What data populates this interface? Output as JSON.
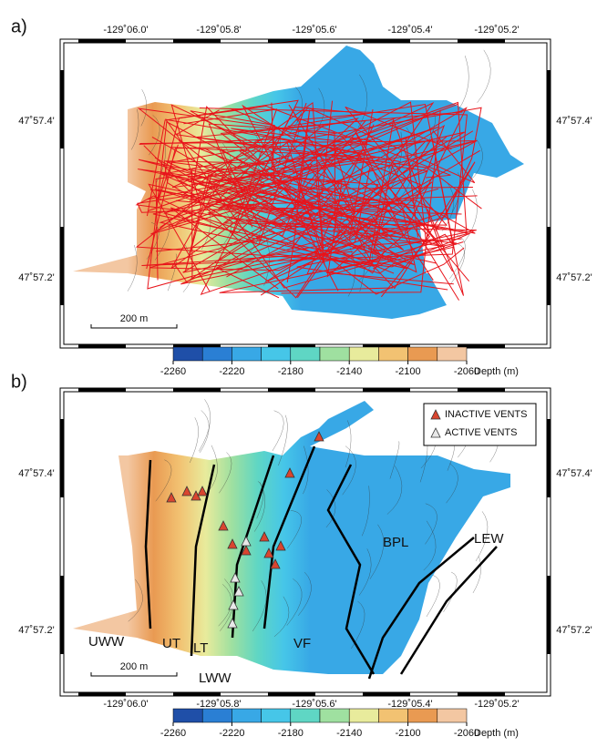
{
  "panels": [
    {
      "label": "a)",
      "x_ticks": [
        "-129˚06.0'",
        "-129˚05.8'",
        "-129˚05.6'",
        "-129˚05.4'",
        "-129˚05.2'"
      ],
      "y_ticks": [
        "47˚57.4'",
        "47˚57.2'"
      ],
      "scale_bar": "200 m"
    },
    {
      "label": "b)",
      "x_ticks": [
        "-129˚06.0'",
        "-129˚05.8'",
        "-129˚05.6'",
        "-129˚05.4'",
        "-129˚05.2'"
      ],
      "y_ticks": [
        "47˚57.4'",
        "47˚57.2'"
      ],
      "scale_bar": "200 m",
      "legend": [
        "INACTIVE VENTS",
        "ACTIVE VENTS"
      ],
      "region_labels": [
        "UWW",
        "UT",
        "LT",
        "LWW",
        "VF",
        "BPL",
        "LEW"
      ]
    }
  ],
  "colorbar": {
    "range": [
      -2260,
      -2060
    ],
    "ticks": [
      -2260,
      -2220,
      -2180,
      -2140,
      -2100,
      -2060
    ],
    "unit": "Depth (m)",
    "colors": [
      "#1f4fa8",
      "#2a7fd4",
      "#38a8e6",
      "#46c6e8",
      "#5fd6c4",
      "#9fe0a0",
      "#e8eb9c",
      "#f2c272",
      "#e99a52",
      "#f3c7a2"
    ]
  }
}
